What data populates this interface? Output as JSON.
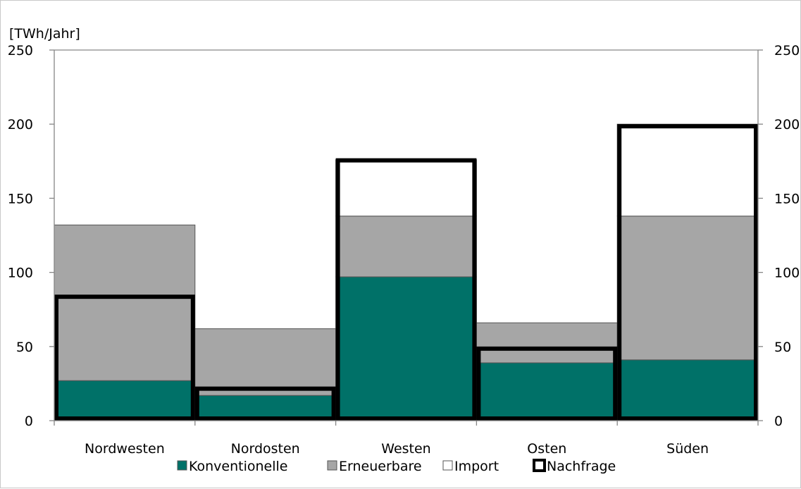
{
  "chart_data": {
    "type": "bar",
    "stacked": true,
    "unit_label": "[TWh/Jahr]",
    "categories": [
      "Nordwesten",
      "Nordosten",
      "Westen",
      "Osten",
      "Süden"
    ],
    "series": [
      {
        "name": "Konventionelle",
        "values": [
          27,
          17,
          97,
          39,
          41
        ],
        "color": "#007168"
      },
      {
        "name": "Erneuerbare",
        "values": [
          105,
          45,
          41,
          27,
          97
        ],
        "color": "#a6a6a6"
      },
      {
        "name": "Import",
        "values": [
          0,
          0,
          38,
          0,
          62
        ],
        "color": "#ffffff"
      }
    ],
    "demand": {
      "name": "Nachfrage",
      "values": [
        85,
        23,
        177,
        50,
        200
      ],
      "color": "#000000"
    },
    "ylim": [
      0,
      250
    ],
    "yticks": [
      0,
      50,
      100,
      150,
      200,
      250
    ],
    "right_axis_ticks": [
      0,
      50,
      100,
      150,
      200,
      250
    ],
    "grid": false,
    "legend_position": "bottom"
  }
}
